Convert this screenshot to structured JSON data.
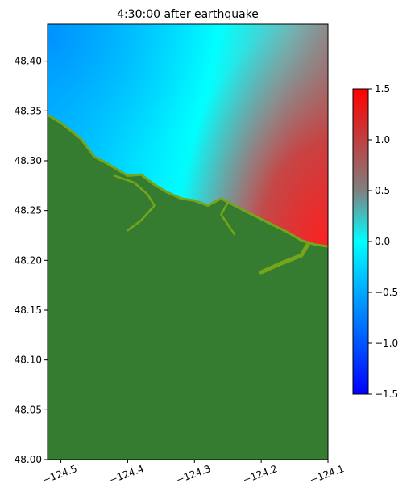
{
  "chart_data": {
    "type": "heatmap",
    "title": "4:30:00 after earthquake",
    "xlabel": "",
    "ylabel": "",
    "xlim": [
      -124.52,
      -124.1
    ],
    "ylim": [
      48.0,
      48.437
    ],
    "x_ticks": [
      -124.5,
      -124.4,
      -124.3,
      -124.2,
      -124.1
    ],
    "x_tick_labels": [
      "−124.5",
      "−124.4",
      "−124.3",
      "−124.2",
      "−124.1"
    ],
    "y_ticks": [
      48.0,
      48.05,
      48.1,
      48.15,
      48.2,
      48.25,
      48.3,
      48.35,
      48.4
    ],
    "y_tick_labels": [
      "48.00",
      "48.05",
      "48.10",
      "48.15",
      "48.20",
      "48.25",
      "48.30",
      "48.35",
      "48.40"
    ],
    "grid": false,
    "colorbar": {
      "range": [
        -1.5,
        1.5
      ],
      "ticks": [
        1.5,
        1.0,
        0.5,
        0.0,
        -0.5,
        -1.0,
        -1.5
      ],
      "tick_labels": [
        "1.5",
        "1.0",
        "0.5",
        "0.0",
        "−0.5",
        "−1.0",
        "−1.5"
      ],
      "colors": {
        "min": "#0000ff",
        "low": "#00a8ff",
        "zero": "#00ffff",
        "mid": "#808080",
        "max": "#ff0000"
      },
      "placement": "right"
    },
    "land_color": "#367c30",
    "shore_color": "#74a51a",
    "coastline": [
      [
        -124.52,
        48.346
      ],
      [
        -124.5,
        48.338
      ],
      [
        -124.47,
        48.322
      ],
      [
        -124.45,
        48.304
      ],
      [
        -124.43,
        48.297
      ],
      [
        -124.4,
        48.285
      ],
      [
        -124.38,
        48.286
      ],
      [
        -124.36,
        48.276
      ],
      [
        -124.34,
        48.268
      ],
      [
        -124.32,
        48.262
      ],
      [
        -124.3,
        48.26
      ],
      [
        -124.28,
        48.255
      ],
      [
        -124.26,
        48.262
      ],
      [
        -124.24,
        48.255
      ],
      [
        -124.22,
        48.248
      ],
      [
        -124.19,
        48.238
      ],
      [
        -124.16,
        48.228
      ],
      [
        -124.14,
        48.22
      ],
      [
        -124.12,
        48.216
      ],
      [
        -124.1,
        48.214
      ]
    ]
  }
}
